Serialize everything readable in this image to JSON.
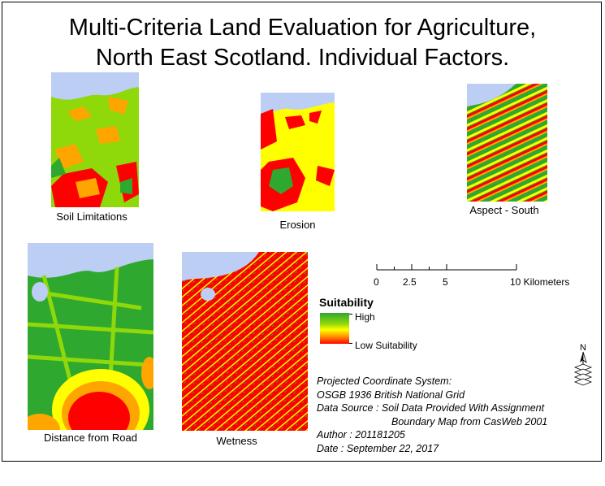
{
  "title_line1": "Multi-Criteria Land Evaluation for Agriculture,",
  "title_line2": "North East Scotland. Individual Factors.",
  "maps": {
    "soil": "Soil Limitations",
    "erosion": "Erosion",
    "aspect": "Aspect - South",
    "road": "Distance from Road",
    "wetness": "Wetness"
  },
  "scale": {
    "ticks": [
      "0",
      "2.5",
      "5",
      "10 Kilometers"
    ]
  },
  "legend": {
    "title": "Suitability",
    "high": "High",
    "low": "Low Suitability",
    "colors": [
      "#2fa82f",
      "#8fd80a",
      "#ffff00",
      "#ff8a00",
      "#ff0000"
    ]
  },
  "north_label": "N",
  "credits": {
    "line1": "Projected Coordinate System:",
    "line2": "OSGB 1936 British National Grid",
    "line3": "Data Source : Soil Data Provided With Assignment",
    "line4": "Boundary Map from CasWeb 2001",
    "line5": "Author : 201181205",
    "line6": "Date : September 22, 2017"
  },
  "colors": {
    "sea": "#bccef3",
    "green": "#2fa82f",
    "lightgreen": "#8fd80a",
    "yellow": "#ffff00",
    "orange": "#ffa500",
    "red": "#ff0000"
  }
}
